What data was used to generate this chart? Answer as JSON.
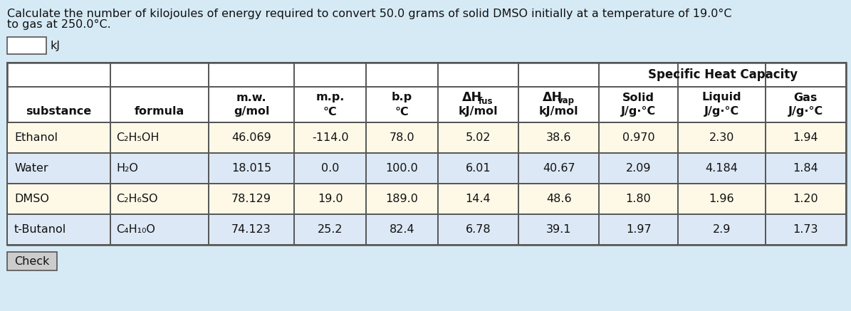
{
  "title_line1": "Calculate the number of kilojoules of energy required to convert 50.0 grams of solid DMSO initially at a temperature of 19.0°C",
  "title_line2": "to gas at 250.0°C.",
  "bg_color": "#d6eaf5",
  "table_bg": "#ffffff",
  "row_color_even": "#fef9e7",
  "row_color_odd": "#dce8f5",
  "border_color": "#555555",
  "text_color": "#111111",
  "title_fontsize": 11.5,
  "table_fontsize": 11.5,
  "substances": [
    "Ethanol",
    "Water",
    "DMSO",
    "t-Butanol"
  ],
  "formulas": [
    "C₂H₅OH",
    "H₂O",
    "C₂H₆SO",
    "C₄H₁₀O"
  ],
  "mw": [
    "46.069",
    "18.015",
    "78.129",
    "74.123"
  ],
  "mp": [
    "-114.0",
    "0.0",
    "19.0",
    "25.2"
  ],
  "bp": [
    "78.0",
    "100.0",
    "189.0",
    "82.4"
  ],
  "dH_fus": [
    "5.02",
    "6.01",
    "14.4",
    "6.78"
  ],
  "dH_vap": [
    "38.6",
    "40.67",
    "48.6",
    "39.1"
  ],
  "solid_shc": [
    "0.970",
    "2.09",
    "1.80",
    "1.97"
  ],
  "liquid_shc": [
    "2.30",
    "4.184",
    "1.96",
    "2.9"
  ],
  "gas_shc": [
    "1.94",
    "1.84",
    "1.20",
    "1.73"
  ],
  "check_btn_color": "#cccccc",
  "input_box_color": "#ffffff"
}
